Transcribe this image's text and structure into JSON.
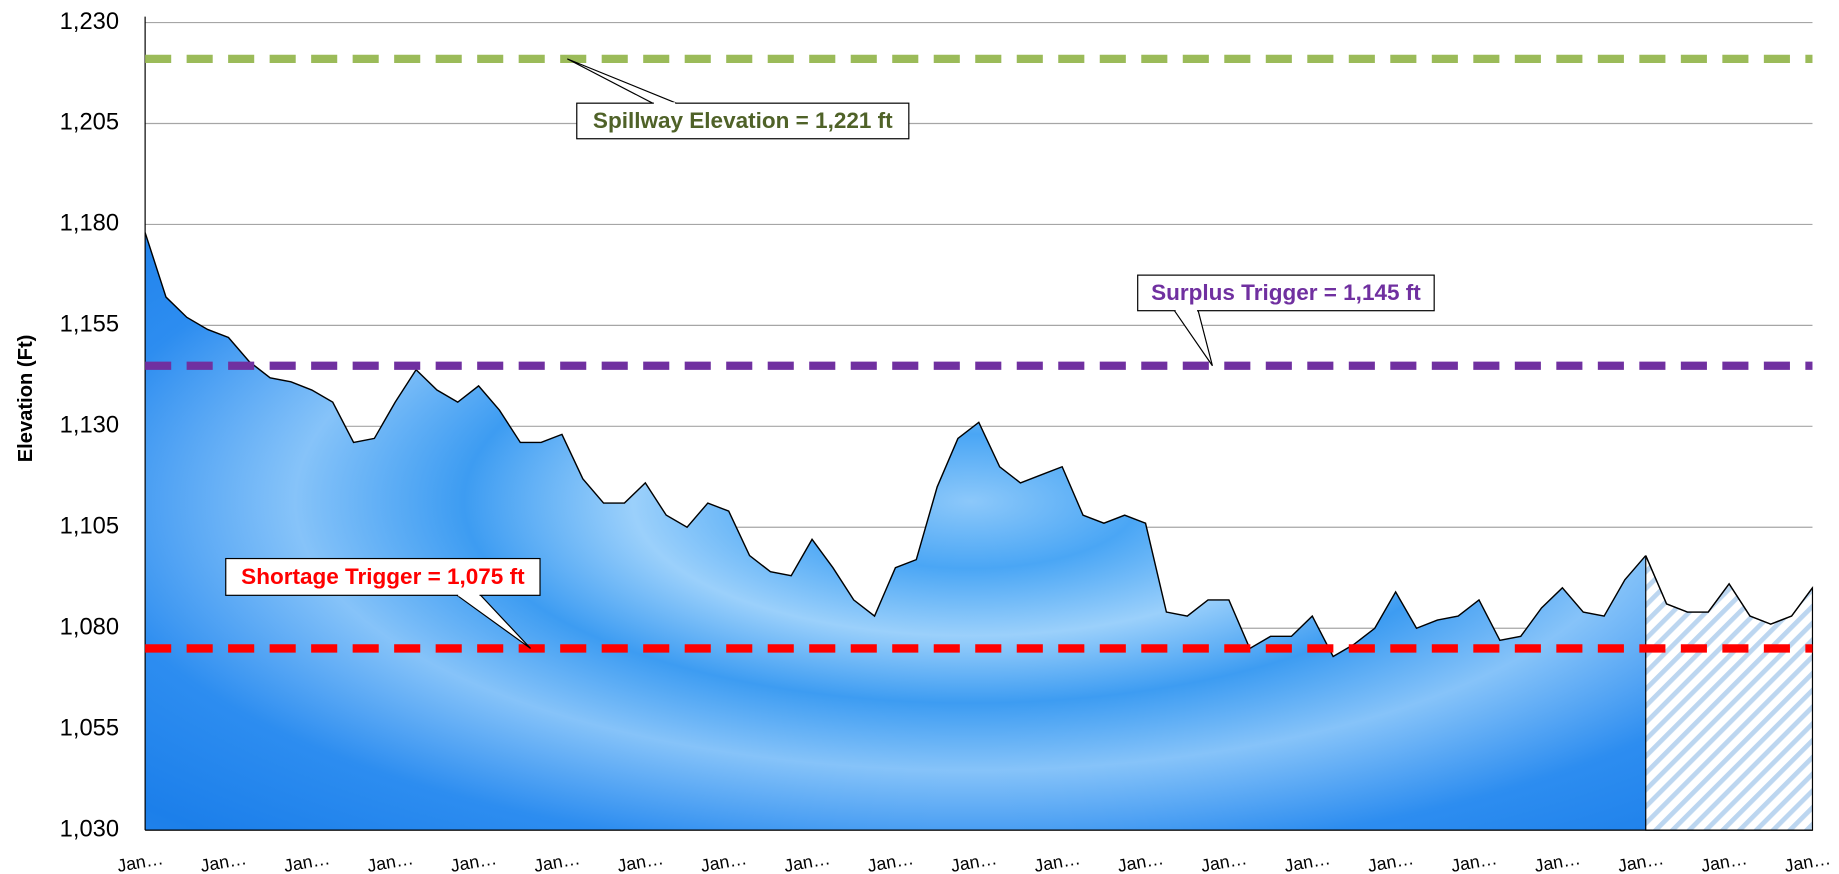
{
  "chart_data": {
    "type": "area",
    "y_label": "Elevation (Ft)",
    "ylim": [
      1030,
      1230
    ],
    "yticks": [
      {
        "value": 1030,
        "label": "1,030"
      },
      {
        "value": 1055,
        "label": "1,055"
      },
      {
        "value": 1080,
        "label": "1,080"
      },
      {
        "value": 1105,
        "label": "1,105"
      },
      {
        "value": 1130,
        "label": "1,130"
      },
      {
        "value": 1155,
        "label": "1,155"
      },
      {
        "value": 1180,
        "label": "1,180"
      },
      {
        "value": 1205,
        "label": "1,205"
      },
      {
        "value": 1230,
        "label": "1,230"
      }
    ],
    "grid": true,
    "categories": [
      "Jan…",
      null,
      null,
      null,
      "Jan…",
      null,
      null,
      null,
      "Jan…",
      null,
      null,
      null,
      "Jan…",
      null,
      null,
      null,
      "Jan…",
      null,
      null,
      null,
      "Jan…",
      null,
      null,
      null,
      "Jan…",
      null,
      null,
      null,
      "Jan…",
      null,
      null,
      null,
      "Jan…",
      null,
      null,
      null,
      "Jan…",
      null,
      null,
      null,
      "Jan…",
      null,
      null,
      null,
      "Jan…",
      null,
      null,
      null,
      "Jan…",
      null,
      null,
      null,
      "Jan…",
      null,
      null,
      null,
      "Jan…",
      null,
      null,
      null,
      "Jan…",
      null,
      null,
      null,
      "Jan…",
      null,
      null,
      null,
      "Jan…",
      null,
      null,
      null,
      "Jan…",
      null,
      null,
      null,
      "Jan…",
      null,
      null,
      null,
      "Jan…"
    ],
    "series": [
      {
        "color": "#2a8ef0",
        "values": [
          1178,
          1162,
          1157,
          1154,
          1152,
          1146,
          1142,
          1141,
          1139,
          1136,
          1126,
          1127,
          1136,
          1144,
          1139,
          1136,
          1140,
          1134,
          1126,
          1126,
          1128,
          1117,
          1111,
          1111,
          1116,
          1108,
          1105,
          1111,
          1109,
          1098,
          1094,
          1093,
          1102,
          1095,
          1087,
          1083,
          1095,
          1097,
          1115,
          1127,
          1131,
          1120,
          1116,
          1118,
          1120,
          1108,
          1106,
          1108,
          1106,
          1084,
          1083,
          1087,
          1087,
          1075,
          1078,
          1078,
          1083,
          1073,
          1076,
          1080,
          1089,
          1080,
          1082,
          1083,
          1087,
          1077,
          1078,
          1085,
          1090,
          1084,
          1083,
          1092,
          1098,
          null,
          null,
          null,
          null,
          null,
          null,
          null,
          null
        ]
      },
      {
        "color": "#bcd6f0",
        "hatched": true,
        "values": [
          null,
          null,
          null,
          null,
          null,
          null,
          null,
          null,
          null,
          null,
          null,
          null,
          null,
          null,
          null,
          null,
          null,
          null,
          null,
          null,
          null,
          null,
          null,
          null,
          null,
          null,
          null,
          null,
          null,
          null,
          null,
          null,
          null,
          null,
          null,
          null,
          null,
          null,
          null,
          null,
          null,
          null,
          null,
          null,
          null,
          null,
          null,
          null,
          null,
          null,
          null,
          null,
          null,
          null,
          null,
          null,
          null,
          null,
          null,
          null,
          null,
          null,
          null,
          null,
          null,
          null,
          null,
          null,
          null,
          null,
          null,
          null,
          1098,
          1086,
          1084,
          1084,
          1091,
          1083,
          1081,
          1083,
          1090
        ]
      }
    ],
    "reference_lines": [
      {
        "label": "Spillway Elevation = 1,221 ft",
        "value": 1221,
        "color": "#9bbb59",
        "text_color": "#4f6228"
      },
      {
        "label": "Surplus Trigger = 1,145 ft",
        "value": 1145,
        "color": "#7030a0",
        "text_color": "#7030a0"
      },
      {
        "label": "Shortage Trigger = 1,075 ft",
        "value": 1075,
        "color": "#ff0000",
        "text_color": "#ff0000"
      }
    ]
  }
}
